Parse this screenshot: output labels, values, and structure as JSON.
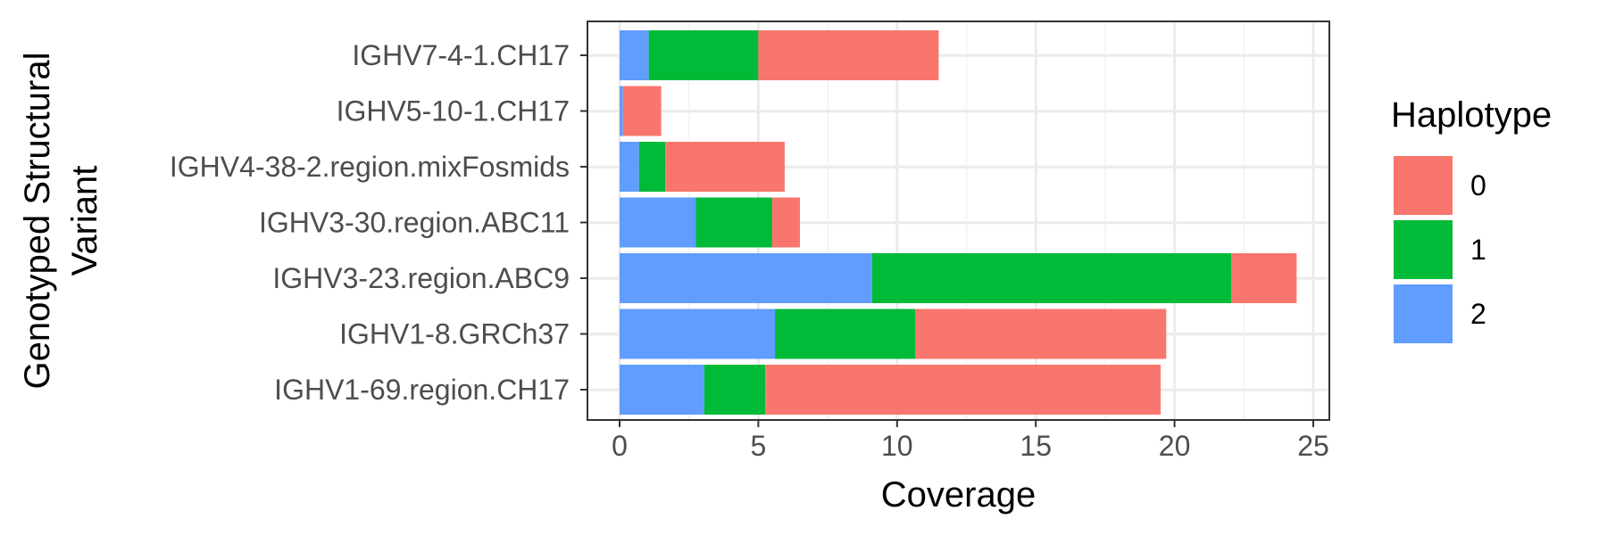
{
  "chart_data": {
    "type": "bar",
    "orientation": "horizontal",
    "stacked": true,
    "title": "",
    "xlabel": "Coverage",
    "ylabel": [
      "Genotyped Structural",
      "Variant"
    ],
    "xlim": [
      0,
      25
    ],
    "x_ticks": [
      0,
      5,
      10,
      15,
      20,
      25
    ],
    "grid": true,
    "legend_position": "right",
    "legend_title": "Haplotype",
    "categories": [
      "IGHV7-4-1.CH17",
      "IGHV5-10-1.CH17",
      "IGHV4-38-2.region.mixFosmids",
      "IGHV3-30.region.ABC11",
      "IGHV3-23.region.ABC9",
      "IGHV1-8.GRCh37",
      "IGHV1-69.region.CH17"
    ],
    "series": [
      {
        "name": "2",
        "color": "#619CFF",
        "values": [
          1.05,
          0.12,
          0.7,
          2.75,
          9.1,
          5.6,
          3.05
        ]
      },
      {
        "name": "1",
        "color": "#00BA38",
        "values": [
          3.95,
          0.0,
          0.95,
          2.75,
          12.95,
          5.05,
          2.2
        ]
      },
      {
        "name": "0",
        "color": "#F8766D",
        "values": [
          6.5,
          1.38,
          4.3,
          1.0,
          2.35,
          9.05,
          14.25
        ]
      }
    ],
    "legend_order": [
      "0",
      "1",
      "2"
    ]
  }
}
